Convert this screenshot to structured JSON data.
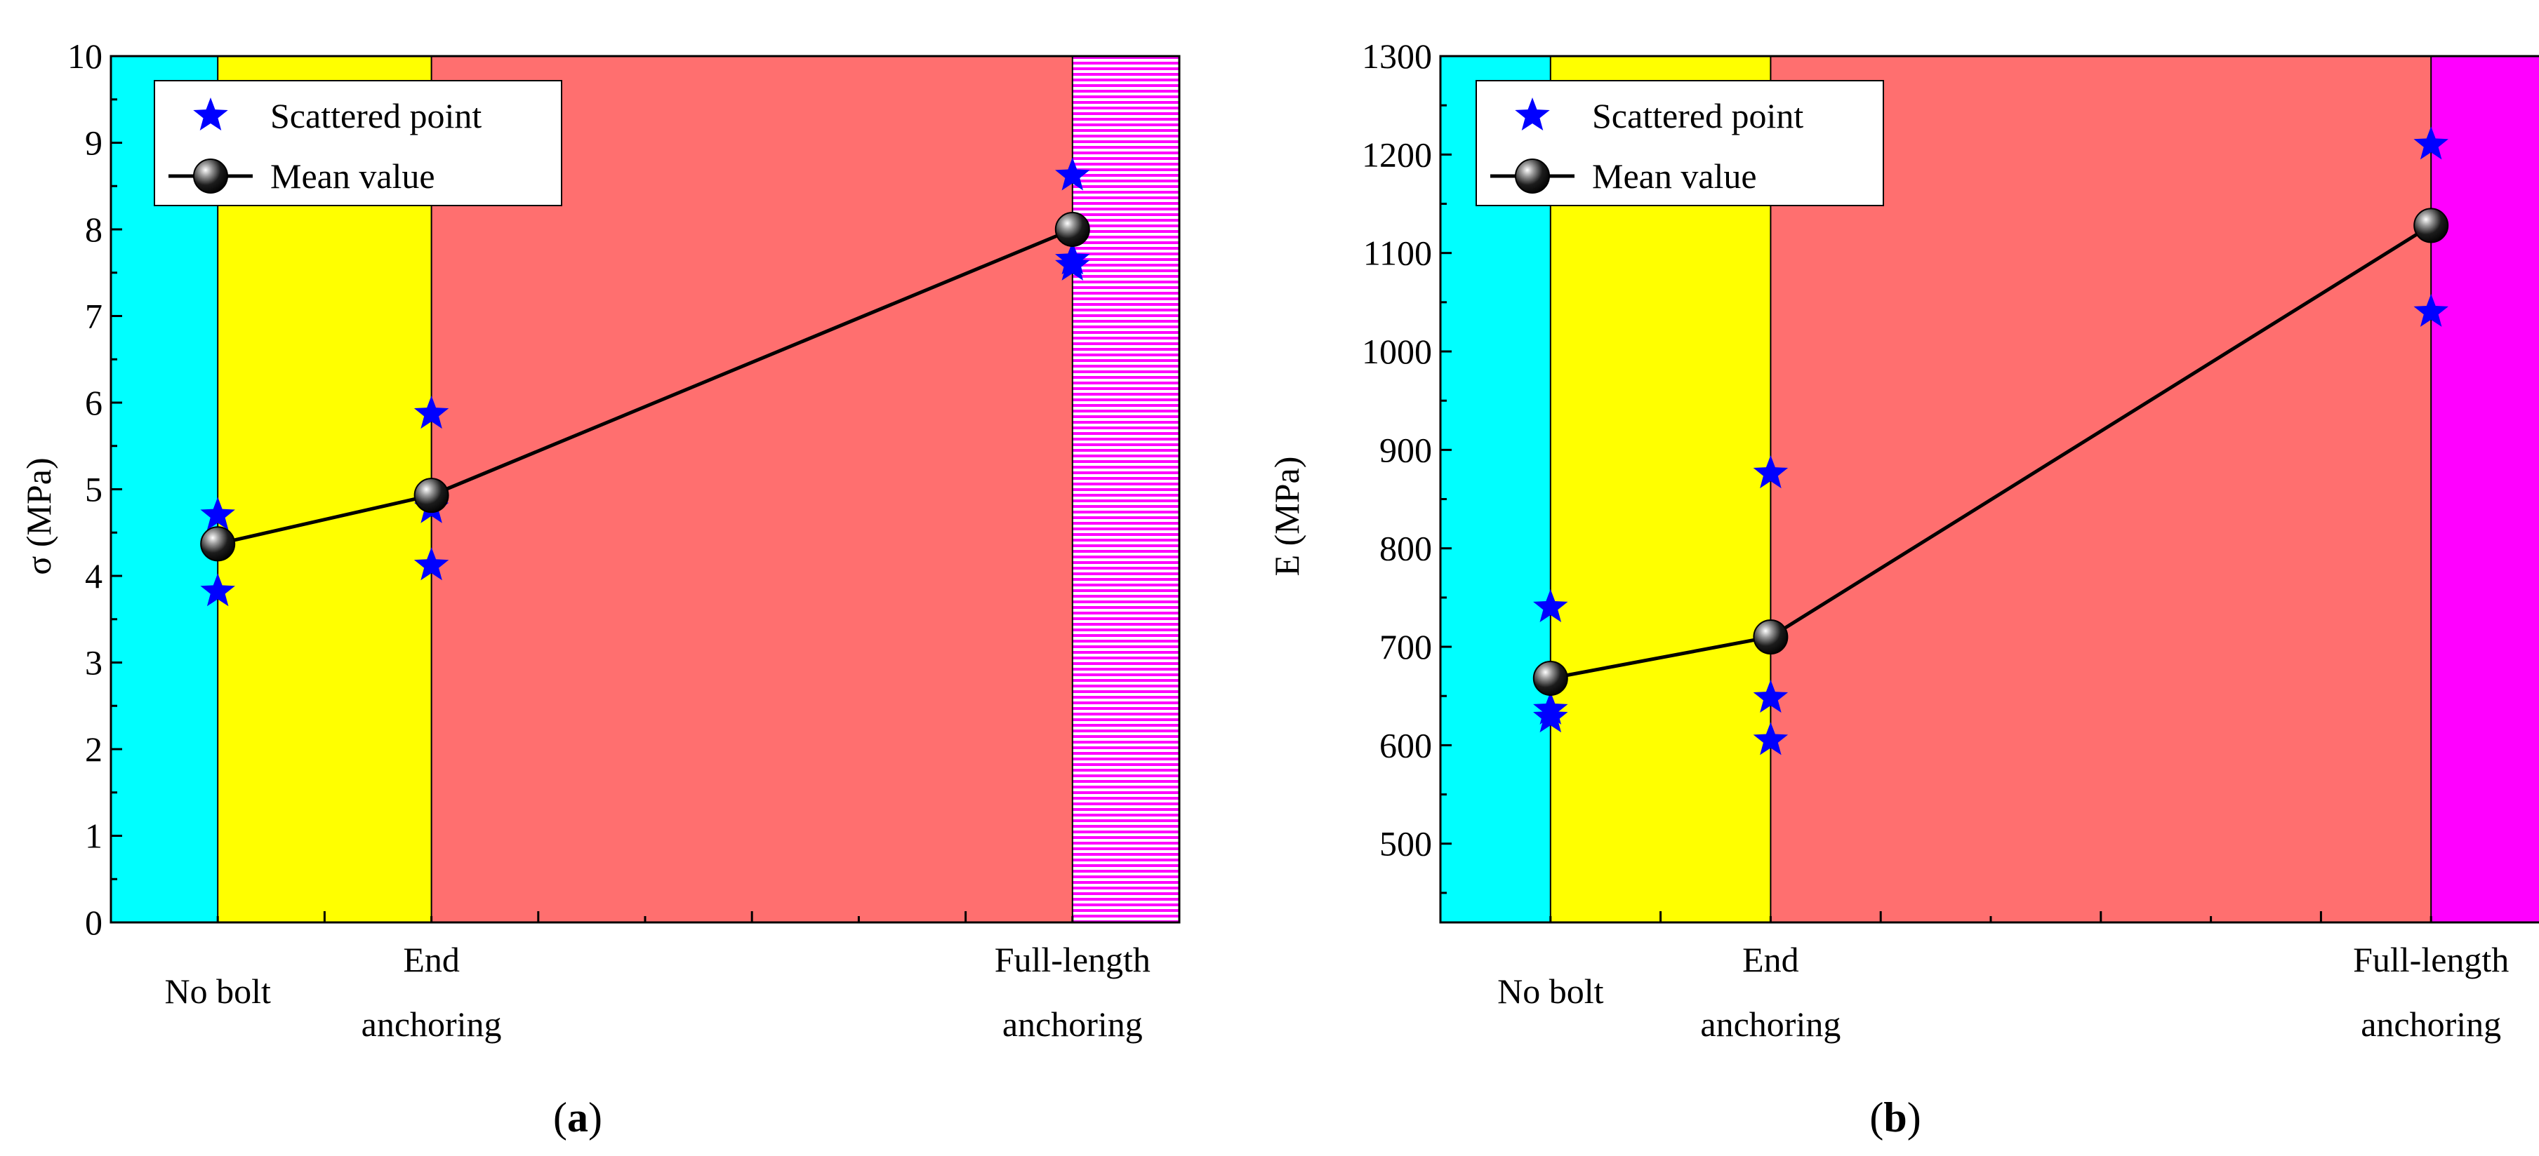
{
  "colors": {
    "no_bolt_region": "#00ffff",
    "end_anchoring_region": "#ffff00",
    "transition_region": "#ff6f6f",
    "full_length_region": "#ff00ff",
    "scatter": "#0000ff",
    "mean_line": "#000000"
  },
  "chart_data": [
    {
      "type": "scatter",
      "panel_label": "a",
      "ylabel": "σ (MPa)",
      "ylim": [
        0,
        10
      ],
      "yticks": [
        "0",
        "1",
        "2",
        "3",
        "4",
        "5",
        "6",
        "7",
        "8",
        "9",
        "10"
      ],
      "xlim": [
        0,
        5
      ],
      "categories": [
        {
          "x": 0.5,
          "lines": [
            "No bolt"
          ]
        },
        {
          "x": 1.5,
          "lines": [
            "End",
            "anchoring"
          ]
        },
        {
          "x": 4.5,
          "lines": [
            "Full-length",
            "anchoring"
          ]
        }
      ],
      "legend": {
        "scatter_label": "Scattered point",
        "mean_label": "Mean value"
      },
      "series": [
        {
          "name": "Scattered point",
          "points": [
            [
              0.5,
              4.7
            ],
            [
              0.5,
              3.82
            ],
            [
              1.5,
              5.87
            ],
            [
              1.5,
              4.78
            ],
            [
              1.5,
              4.12
            ],
            [
              4.5,
              8.62
            ],
            [
              4.5,
              7.65
            ],
            [
              4.5,
              7.58
            ]
          ]
        },
        {
          "name": "Mean value",
          "points": [
            [
              0.5,
              4.37
            ],
            [
              1.5,
              4.93
            ],
            [
              4.5,
              8.0
            ]
          ]
        }
      ],
      "regions": [
        {
          "from": 0,
          "to": 0.5,
          "color_key": "no_bolt_region"
        },
        {
          "from": 0.5,
          "to": 1.5,
          "color_key": "end_anchoring_region"
        },
        {
          "from": 1.5,
          "to": 4.5,
          "color_key": "transition_region"
        },
        {
          "from": 4.5,
          "to": 5,
          "color_key": "full_length_region",
          "striped": true
        }
      ]
    },
    {
      "type": "scatter",
      "panel_label": "b",
      "ylabel": "E (MPa)",
      "ylim": [
        420,
        1300
      ],
      "yticks": [
        "500",
        "600",
        "700",
        "800",
        "900",
        "1000",
        "1100",
        "1200",
        "1300"
      ],
      "xlim": [
        0,
        5
      ],
      "categories": [
        {
          "x": 0.5,
          "lines": [
            "No bolt"
          ]
        },
        {
          "x": 1.5,
          "lines": [
            "End",
            "anchoring"
          ]
        },
        {
          "x": 4.5,
          "lines": [
            "Full-length",
            "anchoring"
          ]
        }
      ],
      "legend": {
        "scatter_label": "Scattered point",
        "mean_label": "Mean value"
      },
      "series": [
        {
          "name": "Scattered point",
          "points": [
            [
              0.5,
              740
            ],
            [
              0.5,
              636
            ],
            [
              0.5,
              628
            ],
            [
              1.5,
              876
            ],
            [
              1.5,
              648
            ],
            [
              1.5,
              605
            ],
            [
              4.5,
              1210
            ],
            [
              4.5,
              1040
            ]
          ]
        },
        {
          "name": "Mean value",
          "points": [
            [
              0.5,
              668
            ],
            [
              1.5,
              710
            ],
            [
              4.5,
              1128
            ]
          ]
        }
      ],
      "regions": [
        {
          "from": 0,
          "to": 0.5,
          "color_key": "no_bolt_region"
        },
        {
          "from": 0.5,
          "to": 1.5,
          "color_key": "end_anchoring_region"
        },
        {
          "from": 1.5,
          "to": 4.5,
          "color_key": "transition_region"
        },
        {
          "from": 4.5,
          "to": 5,
          "color_key": "full_length_region",
          "striped": false
        }
      ]
    }
  ]
}
